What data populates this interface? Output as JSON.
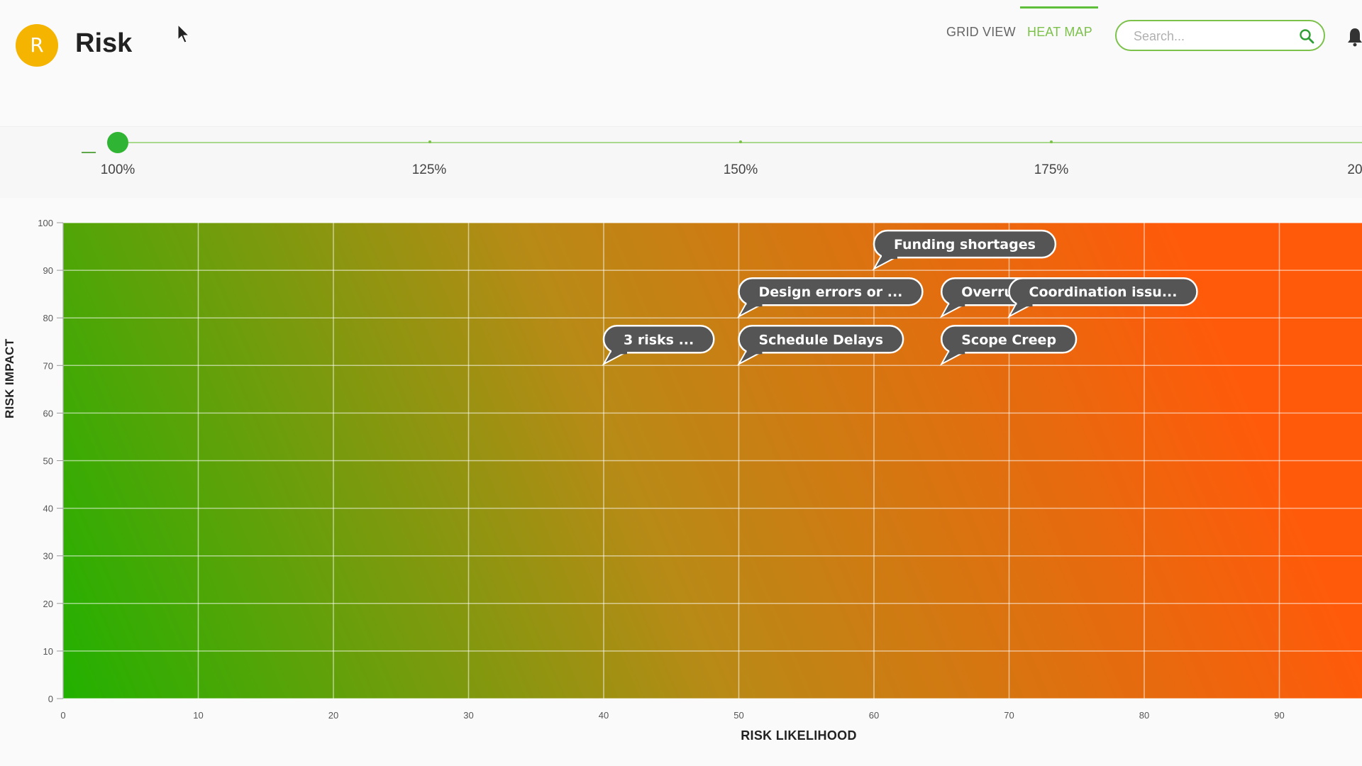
{
  "header": {
    "avatar_letter": "R",
    "title": "Risk",
    "tabs": [
      {
        "label": "GRID VIEW",
        "active": false
      },
      {
        "label": "HEAT MAP",
        "active": true
      }
    ],
    "search_placeholder": "Search..."
  },
  "zoom": {
    "value_percent": 100,
    "labels": [
      "100%",
      "125%",
      "150%",
      "175%",
      "20"
    ]
  },
  "colors": {
    "accent": "#7cc14a",
    "low": "#22b100",
    "high": "#ff5a0a",
    "bubble": "#555555"
  },
  "chart_data": {
    "type": "heatmap",
    "xlabel": "RISK LIKELIHOOD",
    "ylabel": "RISK IMPACT",
    "xlim": [
      0,
      100
    ],
    "ylim": [
      0,
      100
    ],
    "xticks": [
      0,
      10,
      20,
      30,
      40,
      50,
      60,
      70,
      80,
      90
    ],
    "yticks": [
      0,
      10,
      20,
      30,
      40,
      50,
      60,
      70,
      80,
      90,
      100
    ],
    "grid": true,
    "points": [
      {
        "label": "Funding shortages",
        "x": 60,
        "y": 90
      },
      {
        "label": "Design errors or ...",
        "x": 50,
        "y": 80
      },
      {
        "label": "Overrun",
        "x": 65,
        "y": 80
      },
      {
        "label": "Coordination issu...",
        "x": 70,
        "y": 80
      },
      {
        "label": "3 risks ...",
        "x": 40,
        "y": 70
      },
      {
        "label": "Schedule Delays",
        "x": 50,
        "y": 70
      },
      {
        "label": "Scope Creep",
        "x": 65,
        "y": 70
      }
    ]
  }
}
